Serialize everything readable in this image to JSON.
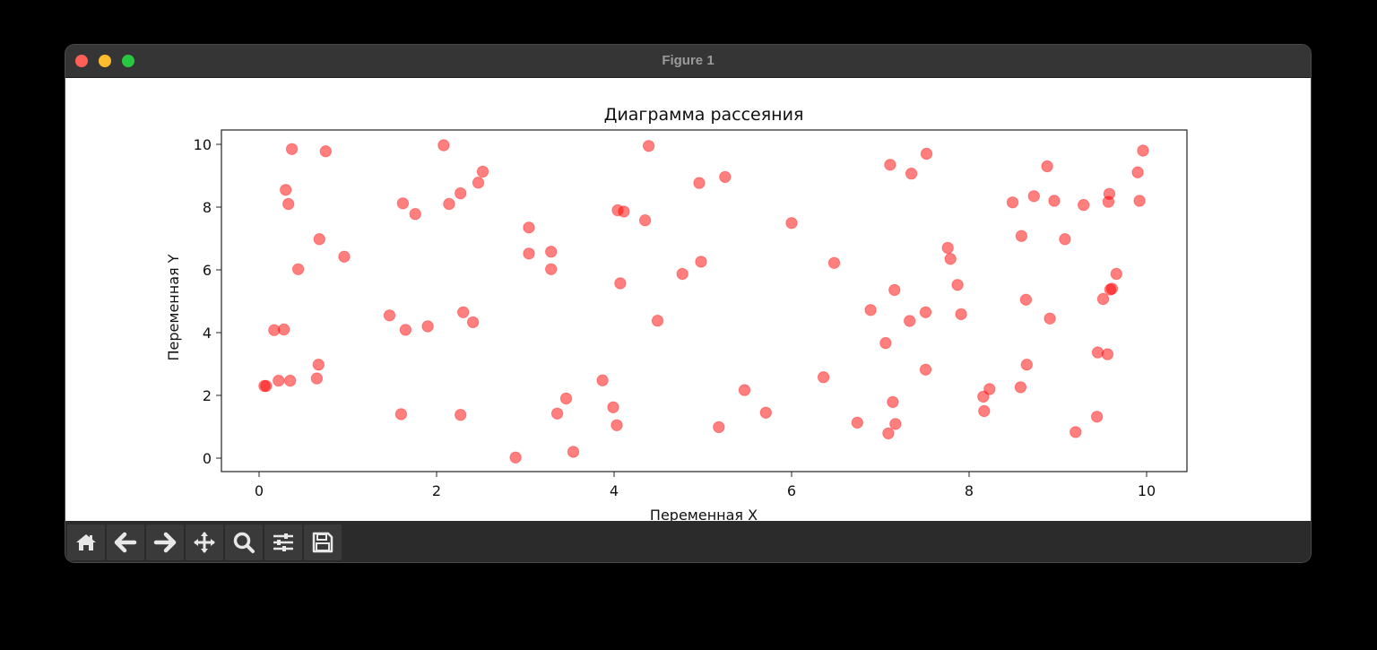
{
  "window": {
    "title": "Figure 1"
  },
  "toolbar": {
    "buttons": [
      {
        "name": "home-button",
        "icon": "home-icon"
      },
      {
        "name": "back-button",
        "icon": "arrow-left-icon"
      },
      {
        "name": "forward-button",
        "icon": "arrow-right-icon"
      },
      {
        "name": "pan-button",
        "icon": "move-icon"
      },
      {
        "name": "zoom-button",
        "icon": "magnifier-icon"
      },
      {
        "name": "configure-subplots-button",
        "icon": "sliders-icon"
      },
      {
        "name": "save-button",
        "icon": "floppy-disk-icon"
      }
    ]
  },
  "chart_data": {
    "type": "scatter",
    "title": "Диаграмма рассеяния",
    "xlabel": "Переменная X",
    "ylabel": "Переменная Y",
    "xlim": [
      -0.45,
      10.45
    ],
    "ylim": [
      -0.45,
      10.45
    ],
    "xticks": [
      0,
      2,
      4,
      6,
      8,
      10
    ],
    "yticks": [
      0,
      2,
      4,
      6,
      8,
      10
    ],
    "grid": false,
    "legend": null,
    "marker_color": "#ff0000",
    "marker_alpha": 0.5,
    "points": [
      [
        0.37,
        9.85
      ],
      [
        0.75,
        9.78
      ],
      [
        0.3,
        8.55
      ],
      [
        0.33,
        8.1
      ],
      [
        0.68,
        6.98
      ],
      [
        0.96,
        6.42
      ],
      [
        0.44,
        6.02
      ],
      [
        0.17,
        4.08
      ],
      [
        0.28,
        4.1
      ],
      [
        0.67,
        2.98
      ],
      [
        0.22,
        2.47
      ],
      [
        0.35,
        2.47
      ],
      [
        0.65,
        2.54
      ],
      [
        0.06,
        2.3
      ],
      [
        0.08,
        2.3
      ],
      [
        2.08,
        9.97
      ],
      [
        2.52,
        9.13
      ],
      [
        2.47,
        8.78
      ],
      [
        2.27,
        8.44
      ],
      [
        1.62,
        8.12
      ],
      [
        2.14,
        8.1
      ],
      [
        1.76,
        7.78
      ],
      [
        1.47,
        4.55
      ],
      [
        1.65,
        4.09
      ],
      [
        1.9,
        4.2
      ],
      [
        2.3,
        4.65
      ],
      [
        2.41,
        4.33
      ],
      [
        1.6,
        1.4
      ],
      [
        2.27,
        1.38
      ],
      [
        3.04,
        7.35
      ],
      [
        3.29,
        6.58
      ],
      [
        3.04,
        6.52
      ],
      [
        3.29,
        6.02
      ],
      [
        3.46,
        1.9
      ],
      [
        3.36,
        1.42
      ],
      [
        3.54,
        0.2
      ],
      [
        2.89,
        0.02
      ],
      [
        4.39,
        9.95
      ],
      [
        4.96,
        8.77
      ],
      [
        5.25,
        8.96
      ],
      [
        4.04,
        7.9
      ],
      [
        4.11,
        7.86
      ],
      [
        4.35,
        7.58
      ],
      [
        4.77,
        5.87
      ],
      [
        4.98,
        6.26
      ],
      [
        4.07,
        5.57
      ],
      [
        4.49,
        4.38
      ],
      [
        3.87,
        2.48
      ],
      [
        3.99,
        1.62
      ],
      [
        4.03,
        1.05
      ],
      [
        5.47,
        2.17
      ],
      [
        5.71,
        1.45
      ],
      [
        5.18,
        0.99
      ],
      [
        6.0,
        7.49
      ],
      [
        6.48,
        6.22
      ],
      [
        7.11,
        9.35
      ],
      [
        7.35,
        9.07
      ],
      [
        7.52,
        9.7
      ],
      [
        6.36,
        2.58
      ],
      [
        6.74,
        1.13
      ],
      [
        6.89,
        4.72
      ],
      [
        7.06,
        3.67
      ],
      [
        7.16,
        5.36
      ],
      [
        7.33,
        4.37
      ],
      [
        7.51,
        4.65
      ],
      [
        7.51,
        2.82
      ],
      [
        7.14,
        1.79
      ],
      [
        7.17,
        1.09
      ],
      [
        7.09,
        0.79
      ],
      [
        7.76,
        6.7
      ],
      [
        7.79,
        6.35
      ],
      [
        7.87,
        5.52
      ],
      [
        7.91,
        4.59
      ],
      [
        8.16,
        1.96
      ],
      [
        8.23,
        2.2
      ],
      [
        8.17,
        1.5
      ],
      [
        8.49,
        8.15
      ],
      [
        8.73,
        8.35
      ],
      [
        8.96,
        8.2
      ],
      [
        8.88,
        9.3
      ],
      [
        9.08,
        6.98
      ],
      [
        9.29,
        8.07
      ],
      [
        8.59,
        7.08
      ],
      [
        8.64,
        5.05
      ],
      [
        8.91,
        4.45
      ],
      [
        8.65,
        2.98
      ],
      [
        8.58,
        2.26
      ],
      [
        9.58,
        8.42
      ],
      [
        9.57,
        8.17
      ],
      [
        9.9,
        9.11
      ],
      [
        9.96,
        9.8
      ],
      [
        9.92,
        8.2
      ],
      [
        9.66,
        5.87
      ],
      [
        9.51,
        5.07
      ],
      [
        9.59,
        5.37
      ],
      [
        9.61,
        5.4
      ],
      [
        9.45,
        3.37
      ],
      [
        9.56,
        3.31
      ],
      [
        9.44,
        1.32
      ],
      [
        9.2,
        0.83
      ]
    ]
  }
}
